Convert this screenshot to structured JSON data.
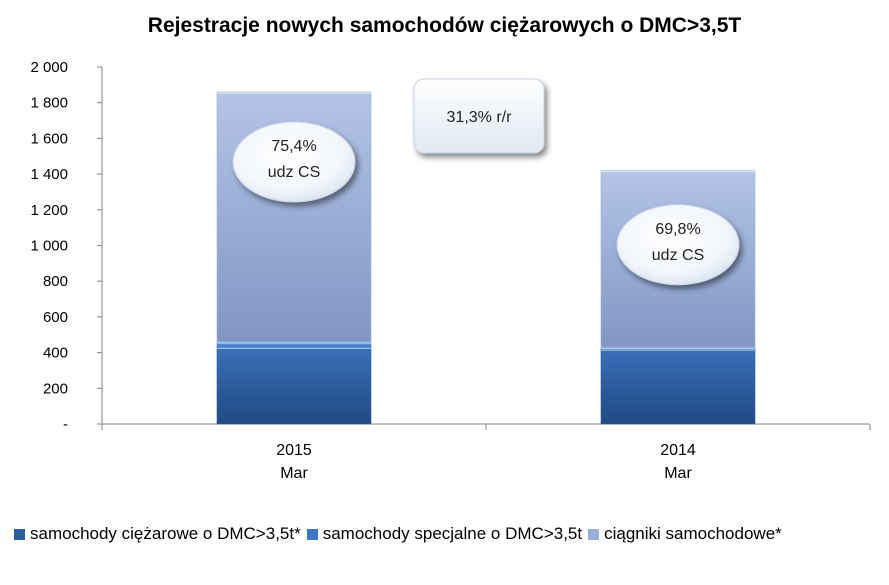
{
  "chart_data": {
    "type": "bar",
    "stacked": true,
    "title": "Rejestracje nowych samochodów ciężarowych o DMC>3,5T",
    "categories": [
      [
        "2015",
        "Mar"
      ],
      [
        "2014",
        "Mar"
      ]
    ],
    "ylim": [
      0,
      2000
    ],
    "yticks": [
      0,
      200,
      400,
      600,
      800,
      1000,
      1200,
      1400,
      1600,
      1800,
      2000
    ],
    "ytick_labels": [
      "-",
      "200",
      "400",
      "600",
      "800",
      "1 000",
      "1 200",
      "1 400",
      "1 600",
      "1 800",
      "2 000"
    ],
    "grid": false,
    "legend_position": "bottom",
    "series": [
      {
        "name": "samochody ciężarowe o DMC>3,5t*",
        "color": "#2E5E9E",
        "values": [
          430,
          420
        ]
      },
      {
        "name": "samochody specjalne o DMC>3,5t",
        "color": "#3C78C8",
        "values": [
          30,
          10
        ]
      },
      {
        "name": "ciągniki samochodowe*",
        "color": "#9AAFD6",
        "values": [
          1400,
          990
        ]
      }
    ],
    "annotations": [
      {
        "lines": [
          "75,4%",
          "udz CS"
        ],
        "category": 0,
        "shape": "ellipse"
      },
      {
        "lines": [
          "69,8%",
          "udz CS"
        ],
        "category": 1,
        "shape": "ellipse"
      },
      {
        "lines": [
          "31,3% r/r"
        ],
        "shape": "box"
      }
    ]
  }
}
